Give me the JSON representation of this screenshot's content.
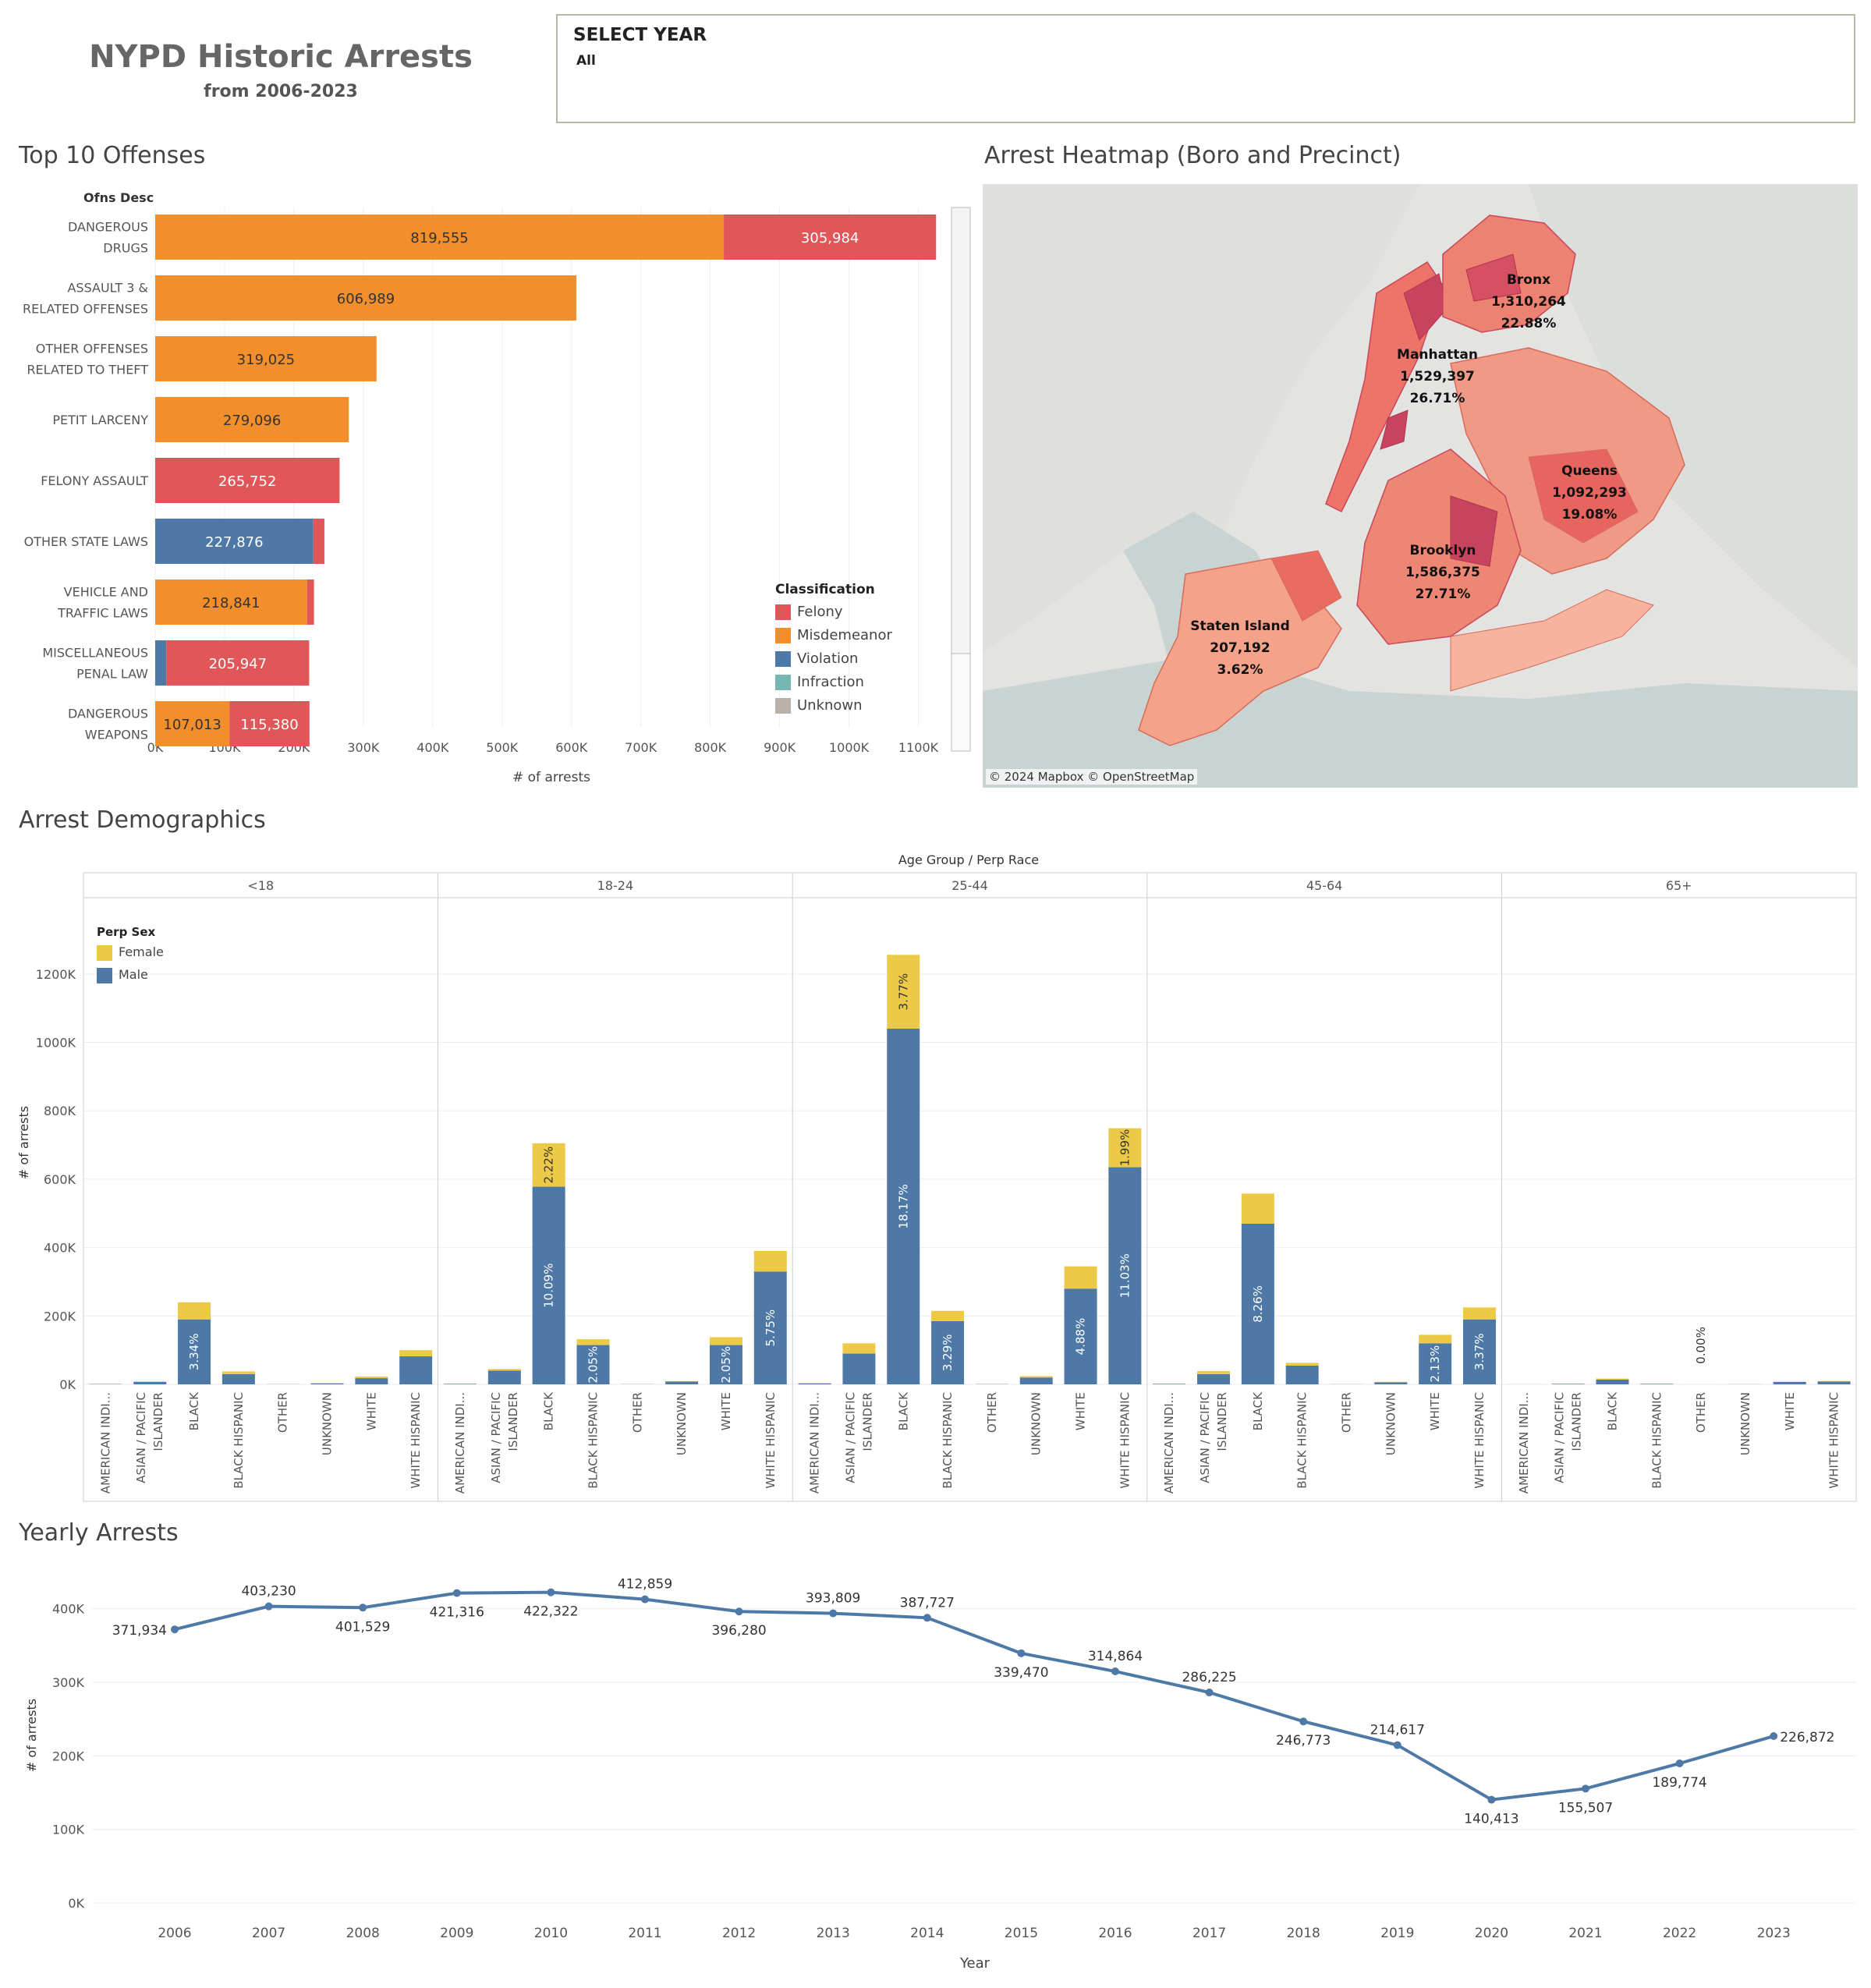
{
  "header": {
    "title": "NYPD Historic Arrests",
    "subtitle": "from 2006-2023",
    "filter_label": "SELECT YEAR",
    "filter_value": "All"
  },
  "colors": {
    "felony": "#e15759",
    "misdemeanor": "#f28e2b",
    "violation": "#4e79a7",
    "infraction": "#76b7b2",
    "unknown": "#bab0ac",
    "female": "#edc948",
    "male": "#4e79a7",
    "line": "#4e79a7"
  },
  "offenses": {
    "title": "Top 10 Offenses",
    "row_header": "Ofns Desc",
    "xlabel": "# of arrests",
    "legend_title": "Classification",
    "legend_items": [
      "Felony",
      "Misdemeanor",
      "Violation",
      "Infraction",
      "Unknown"
    ]
  },
  "heatmap": {
    "title": "Arrest Heatmap (Boro and Precinct)",
    "credit": "© 2024 Mapbox © OpenStreetMap",
    "boroughs": [
      {
        "name": "Bronx",
        "arrests": "1,310,264",
        "pct": "22.88%"
      },
      {
        "name": "Manhattan",
        "arrests": "1,529,397",
        "pct": "26.71%"
      },
      {
        "name": "Queens",
        "arrests": "1,092,293",
        "pct": "19.08%"
      },
      {
        "name": "Brooklyn",
        "arrests": "1,586,375",
        "pct": "27.71%"
      },
      {
        "name": "Staten Island",
        "arrests": "207,192",
        "pct": "3.62%"
      }
    ]
  },
  "demographics": {
    "title": "Arrest Demographics",
    "header": "Age Group  /  Perp Race",
    "ylabel": "# of arrests",
    "legend_title": "Perp Sex",
    "legend_items": [
      "Female",
      "Male"
    ]
  },
  "yearly": {
    "title": "Yearly Arrests",
    "xlabel": "Year",
    "ylabel": "# of arrests"
  },
  "chart_data": [
    {
      "type": "bar",
      "orientation": "horizontal",
      "stacked": true,
      "title": "Top 10 Offenses",
      "xlabel": "# of arrests",
      "ylabel": "Ofns Desc",
      "xlim": [
        0,
        1150000
      ],
      "x_ticks": [
        "0K",
        "100K",
        "200K",
        "300K",
        "400K",
        "500K",
        "600K",
        "700K",
        "800K",
        "900K",
        "1000K",
        "1100K"
      ],
      "categories": [
        [
          "DANGEROUS",
          "DRUGS"
        ],
        [
          "ASSAULT 3 &",
          "RELATED OFFENSES"
        ],
        [
          "OTHER OFFENSES",
          "RELATED TO THEFT"
        ],
        [
          "PETIT LARCENY"
        ],
        [
          "FELONY ASSAULT"
        ],
        [
          "OTHER STATE LAWS"
        ],
        [
          "VEHICLE AND",
          "TRAFFIC LAWS"
        ],
        [
          "MISCELLANEOUS",
          "PENAL LAW"
        ],
        [
          "DANGEROUS",
          "WEAPONS"
        ]
      ],
      "series": [
        {
          "name": "Violation",
          "values": [
            0,
            0,
            0,
            0,
            0,
            227876,
            0,
            16000,
            0
          ],
          "labels": [
            "",
            "",
            "",
            "",
            "",
            "227,876",
            "",
            "",
            ""
          ]
        },
        {
          "name": "Misdemeanor",
          "values": [
            819555,
            606989,
            319025,
            279096,
            0,
            0,
            218841,
            0,
            107013
          ],
          "labels": [
            "819,555",
            "606,989",
            "319,025",
            "279,096",
            "",
            "",
            "218,841",
            "",
            "107,013"
          ]
        },
        {
          "name": "Felony",
          "values": [
            305984,
            0,
            0,
            0,
            265752,
            16000,
            10000,
            205947,
            115380
          ],
          "labels": [
            "305,984",
            "",
            "",
            "",
            "265,752",
            "",
            "",
            "205,947",
            "115,380"
          ]
        }
      ],
      "legend": "bottom-right",
      "grid": true
    },
    {
      "type": "bar",
      "stacked": true,
      "title": "Arrest Demographics",
      "ylabel": "# of arrests",
      "ylim": [
        0,
        1300000
      ],
      "y_ticks": [
        "0K",
        "200K",
        "400K",
        "600K",
        "800K",
        "1000K",
        "1200K"
      ],
      "groups": [
        "<18",
        "18-24",
        "25-44",
        "45-64",
        "65+"
      ],
      "categories": [
        "AMERICAN INDI...",
        "ASIAN / PACIFIC ISLANDER",
        "BLACK",
        "BLACK HISPANIC",
        "OTHER",
        "UNKNOWN",
        "WHITE",
        "WHITE HISPANIC"
      ],
      "series": [
        {
          "name": "Male",
          "values": [
            [
              1000,
              7000,
              190000,
              30000,
              500,
              3000,
              18000,
              82000
            ],
            [
              1500,
              40000,
              578000,
              115000,
              500,
              8000,
              115000,
              330000
            ],
            [
              3000,
              90000,
              1040000,
              185000,
              800,
              20000,
              280000,
              635000
            ],
            [
              1500,
              30000,
              470000,
              55000,
              400,
              6000,
              120000,
              190000
            ],
            [
              200,
              1500,
              14000,
              1500,
              100,
              300,
              7000,
              8000
            ]
          ],
          "labels": [
            [
              "",
              "",
              "3.34%",
              "",
              "",
              "",
              "",
              ""
            ],
            [
              "",
              "",
              "10.09%",
              "2.05%",
              "",
              "",
              "2.05%",
              "5.75%"
            ],
            [
              "",
              "",
              "18.17%",
              "3.29%",
              "",
              "",
              "4.88%",
              "11.03%"
            ],
            [
              "",
              "",
              "8.26%",
              "",
              "",
              "",
              "2.13%",
              "3.37%"
            ],
            [
              "",
              "",
              "",
              "",
              "0.00%",
              "",
              "",
              ""
            ]
          ]
        },
        {
          "name": "Female",
          "values": [
            [
              300,
              1500,
              50000,
              8000,
              100,
              500,
              5000,
              18000
            ],
            [
              400,
              5000,
              127000,
              17000,
              100,
              1500,
              23000,
              60000
            ],
            [
              700,
              30000,
              216000,
              30000,
              200,
              4000,
              65000,
              114000
            ],
            [
              400,
              9000,
              88000,
              8000,
              100,
              1500,
              25000,
              35000
            ],
            [
              100,
              500,
              3000,
              500,
              0,
              100,
              1000,
              2000
            ]
          ],
          "labels": [
            [
              "",
              "",
              "",
              "",
              "",
              "",
              "",
              ""
            ],
            [
              "",
              "",
              "2.22%",
              "",
              "",
              "",
              "",
              ""
            ],
            [
              "",
              "",
              "3.77%",
              "",
              "",
              "",
              "",
              "1.99%"
            ],
            [
              "",
              "",
              "",
              "",
              "",
              "",
              "",
              ""
            ],
            [
              "",
              "",
              "",
              "",
              "",
              "",
              "",
              ""
            ]
          ]
        }
      ],
      "legend": "top-left",
      "grid": true
    },
    {
      "type": "line",
      "title": "Yearly Arrests",
      "xlabel": "Year",
      "ylabel": "# of arrests",
      "ylim": [
        0,
        440000
      ],
      "y_ticks": [
        "0K",
        "100K",
        "200K",
        "300K",
        "400K"
      ],
      "x": [
        "2006",
        "2007",
        "2008",
        "2009",
        "2010",
        "2011",
        "2012",
        "2013",
        "2014",
        "2015",
        "2016",
        "2017",
        "2018",
        "2019",
        "2020",
        "2021",
        "2022",
        "2023"
      ],
      "values": [
        371934,
        403230,
        401529,
        421316,
        422322,
        412859,
        396280,
        393809,
        387727,
        339470,
        314864,
        286225,
        246773,
        214617,
        140413,
        155507,
        189774,
        226872
      ],
      "labels": [
        "371,934",
        "403,230",
        "401,529",
        "421,316",
        "422,322",
        "412,859",
        "396,280",
        "393,809",
        "387,727",
        "339,470",
        "314,864",
        "286,225",
        "246,773",
        "214,617",
        "140,413",
        "155,507",
        "189,774",
        "226,872"
      ],
      "grid": true
    }
  ]
}
